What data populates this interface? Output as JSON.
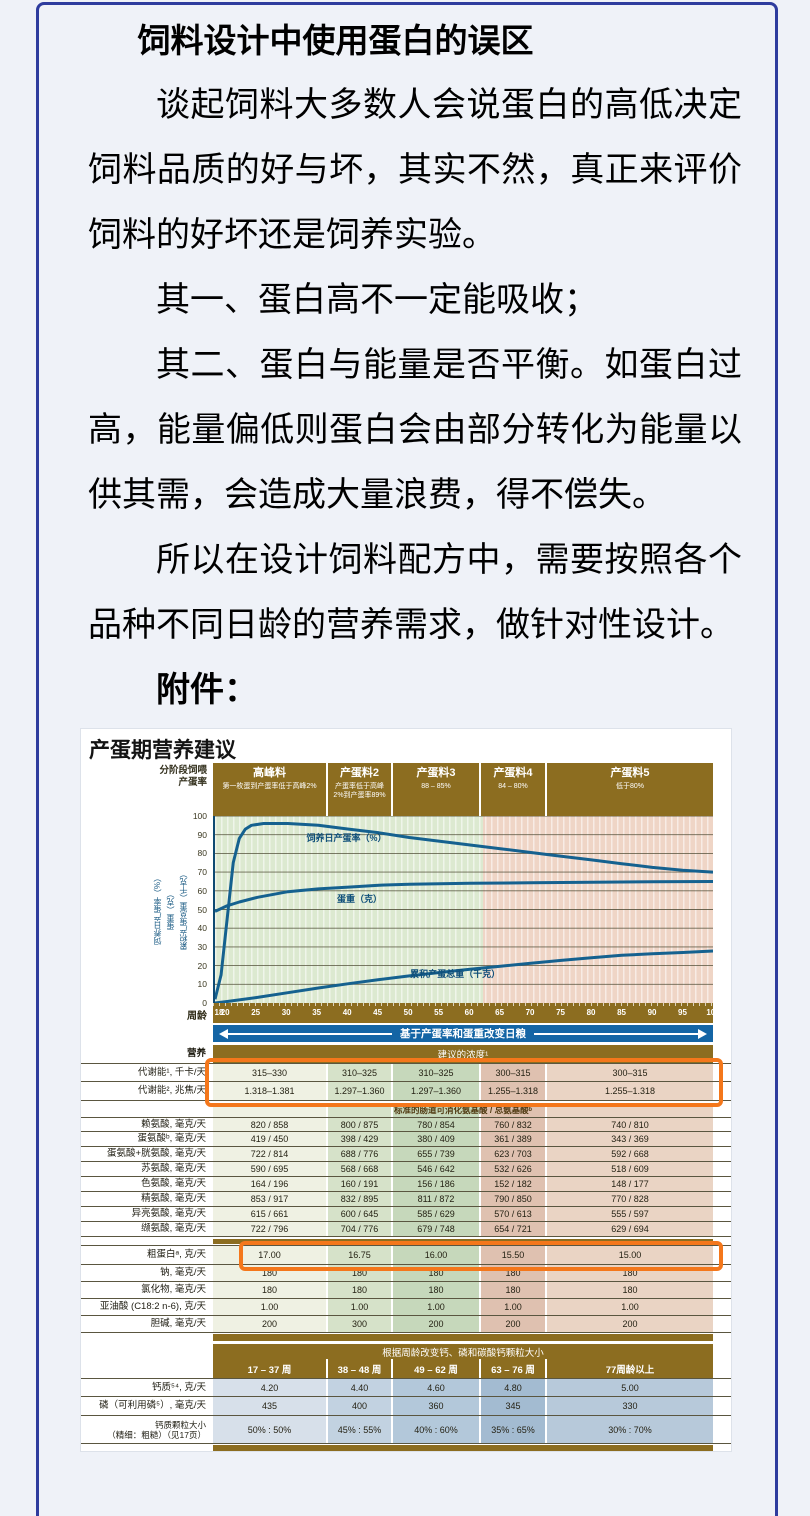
{
  "page": {
    "title": "饲料设计中使用蛋白的误区",
    "paragraphs": [
      {
        "text": "谈起饲料大多数人会说蛋白的高低决定饲料品质的好与坏，其实不然，真正来评价饲料的好坏还是饲养实验。",
        "bold": false
      },
      {
        "text": "其一、蛋白高不一定能吸收；",
        "bold": false
      },
      {
        "text": "其二、蛋白与能量是否平衡。如蛋白过高，能量偏低则蛋白会由部分转化为能量以供其需，会造成大量浪费，得不偿失。",
        "bold": false
      },
      {
        "text": "所以在设计饲料配方中，需要按照各个品种不同日龄的营养需求，做针对性设计。",
        "bold": false
      },
      {
        "text": "附件：",
        "bold": true
      }
    ]
  },
  "chart_data": {
    "type": "line",
    "title": "产蛋期营养建议",
    "xlabel": "周龄",
    "xlim": [
      18,
      100
    ],
    "ylim": [
      0,
      100
    ],
    "x_ticks": [
      18,
      20,
      25,
      30,
      35,
      40,
      45,
      50,
      55,
      60,
      65,
      70,
      75,
      80,
      85,
      90,
      95,
      100
    ],
    "y_ticks": [
      0,
      10,
      20,
      30,
      40,
      50,
      60,
      70,
      80,
      90,
      100
    ],
    "grid": true,
    "legend_position": "inline-labels",
    "ylabels": [
      "饲养日产蛋率（%）",
      "蛋重（克）",
      "累积产蛋总重（千克）"
    ],
    "background_zones": [
      {
        "from": 18,
        "to": 62,
        "color": "#dce9d0"
      },
      {
        "from": 62,
        "to": 100,
        "color": "#efd5c6"
      }
    ],
    "series": [
      {
        "name": "饲养日产蛋率（%）",
        "label_at": [
          33,
          89
        ],
        "points": [
          [
            18,
            2
          ],
          [
            19,
            15
          ],
          [
            20,
            45
          ],
          [
            21,
            75
          ],
          [
            22,
            88
          ],
          [
            23,
            93
          ],
          [
            24,
            95
          ],
          [
            26,
            96
          ],
          [
            30,
            96
          ],
          [
            35,
            95
          ],
          [
            40,
            93
          ],
          [
            45,
            91
          ],
          [
            50,
            88.5
          ],
          [
            55,
            86.5
          ],
          [
            60,
            84.5
          ],
          [
            65,
            82.5
          ],
          [
            70,
            80.5
          ],
          [
            75,
            78.5
          ],
          [
            80,
            76.5
          ],
          [
            85,
            74.5
          ],
          [
            90,
            72.5
          ],
          [
            95,
            71
          ],
          [
            100,
            70
          ]
        ]
      },
      {
        "name": "蛋重（克）",
        "label_at": [
          38,
          56
        ],
        "points": [
          [
            18,
            49
          ],
          [
            20,
            52
          ],
          [
            22,
            54
          ],
          [
            25,
            56.5
          ],
          [
            30,
            59.5
          ],
          [
            35,
            61
          ],
          [
            40,
            62
          ],
          [
            45,
            63
          ],
          [
            50,
            63.5
          ],
          [
            55,
            63.8
          ],
          [
            60,
            64
          ],
          [
            70,
            64.3
          ],
          [
            80,
            64.6
          ],
          [
            90,
            64.8
          ],
          [
            100,
            65
          ]
        ]
      },
      {
        "name": "累积产蛋总重（千克）",
        "label_at": [
          50,
          16
        ],
        "points": [
          [
            18,
            0
          ],
          [
            20,
            0.8
          ],
          [
            25,
            3
          ],
          [
            30,
            5.5
          ],
          [
            35,
            8
          ],
          [
            40,
            10.3
          ],
          [
            45,
            12.5
          ],
          [
            50,
            14.5
          ],
          [
            55,
            16.3
          ],
          [
            60,
            18
          ],
          [
            65,
            19.7
          ],
          [
            70,
            21.3
          ],
          [
            75,
            22.8
          ],
          [
            80,
            24.2
          ],
          [
            85,
            25.5
          ],
          [
            90,
            26.3
          ],
          [
            95,
            27
          ],
          [
            100,
            27.8
          ]
        ]
      }
    ]
  },
  "figure": {
    "title": "产蛋期营养建议",
    "phase_label_line1": "分阶段饲喂",
    "phase_label_line2": "产蛋率",
    "phases": [
      {
        "title": "高峰料",
        "sub": "第一枚蛋到产蛋率低于高峰2%"
      },
      {
        "title": "产蛋料2",
        "sub": "产蛋率低于高峰2%到产蛋率89%"
      },
      {
        "title": "产蛋料3",
        "sub": "88 – 85%"
      },
      {
        "title": "产蛋料4",
        "sub": "84 – 80%"
      },
      {
        "title": "产蛋料5",
        "sub": "低于80%"
      }
    ],
    "diet_band_text": "基于产蛋率和蛋重改变日粮",
    "nutrition": {
      "section_label": "营养",
      "header": "建议的浓度¹",
      "amino_header": "标准的肠道可消化氨基酸 / 总氨基酸ᵇ",
      "energy_rows": [
        {
          "label": "代谢能¹, 千卡/天",
          "values": [
            "315–330",
            "310–325",
            "310–325",
            "300–315",
            "300–315"
          ]
        },
        {
          "label": "代谢能², 兆焦/天",
          "values": [
            "1.318–1.381",
            "1.297–1.360",
            "1.297–1.360",
            "1.255–1.318",
            "1.255–1.318"
          ]
        }
      ],
      "amino_rows": [
        {
          "label": "赖氨酸, 毫克/天",
          "values": [
            "820 / 858",
            "800 / 875",
            "780 / 854",
            "760 / 832",
            "740 / 810"
          ]
        },
        {
          "label": "蛋氨酸ᵇ, 毫克/天",
          "values": [
            "419 / 450",
            "398 / 429",
            "380 / 409",
            "361 / 389",
            "343 / 369"
          ]
        },
        {
          "label": "蛋氨酸+胱氨酸, 毫克/天",
          "values": [
            "722 / 814",
            "688 / 776",
            "655 / 739",
            "623 / 703",
            "592 / 668"
          ]
        },
        {
          "label": "苏氨酸, 毫克/天",
          "values": [
            "590 / 695",
            "568 / 668",
            "546 / 642",
            "532 / 626",
            "518 / 609"
          ]
        },
        {
          "label": "色氨酸, 毫克/天",
          "values": [
            "164 / 196",
            "160 / 191",
            "156 / 186",
            "152 / 182",
            "148 / 177"
          ]
        },
        {
          "label": "精氨酸, 毫克/天",
          "values": [
            "853 / 917",
            "832 / 895",
            "811 / 872",
            "790 / 850",
            "770 / 828"
          ]
        },
        {
          "label": "异亮氨酸, 毫克/天",
          "values": [
            "615 / 661",
            "600 / 645",
            "585 / 629",
            "570 / 613",
            "555 / 597"
          ]
        },
        {
          "label": "缬氨酸, 毫克/天",
          "values": [
            "722 / 796",
            "704 / 776",
            "679 / 748",
            "654 / 721",
            "629 / 694"
          ]
        }
      ],
      "other_rows": [
        {
          "label": "粗蛋白ᵃ, 克/天",
          "values": [
            "17.00",
            "16.75",
            "16.00",
            "15.50",
            "15.00"
          ]
        },
        {
          "label": "钠, 毫克/天",
          "values": [
            "180",
            "180",
            "180",
            "180",
            "180"
          ]
        },
        {
          "label": "氯化物, 毫克/天",
          "values": [
            "180",
            "180",
            "180",
            "180",
            "180"
          ]
        },
        {
          "label": "亚油酸 (C18:2 n-6), 克/天",
          "values": [
            "1.00",
            "1.00",
            "1.00",
            "1.00",
            "1.00"
          ]
        },
        {
          "label": "胆碱, 毫克/天",
          "values": [
            "200",
            "300",
            "200",
            "200",
            "200"
          ]
        }
      ]
    },
    "minerals": {
      "header": "根据周龄改变钙、磷和碳酸钙颗粒大小",
      "col_headers": [
        "17 – 37 周",
        "38 – 48 周",
        "49 – 62 周",
        "63 – 76 周",
        "77周龄以上"
      ],
      "rows": [
        {
          "label": "钙质⁵⁴, 克/天",
          "values": [
            "4.20",
            "4.40",
            "4.60",
            "4.80",
            "5.00"
          ]
        },
        {
          "label": "磷（可利用磷⁵）, 毫克/天",
          "values": [
            "435",
            "400",
            "360",
            "345",
            "330"
          ]
        },
        {
          "label": "钙质颗粒大小\n（精细：粗糙）（见17页）",
          "values": [
            "50% : 50%",
            "45% : 55%",
            "40% : 60%",
            "35% : 65%",
            "30% : 70%"
          ],
          "small": true
        }
      ]
    }
  }
}
